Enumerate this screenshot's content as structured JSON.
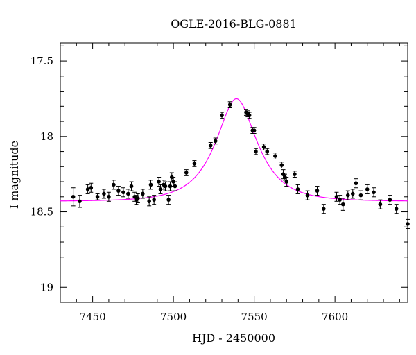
{
  "chart_data": {
    "type": "scatter",
    "title": "OGLE-2016-BLG-0881",
    "xlabel": "HJD - 2450000",
    "ylabel": "I magnitude",
    "xlim": [
      7430,
      7645
    ],
    "ylim": [
      19.1,
      17.38
    ],
    "y_axis_inverted": true,
    "grid": false,
    "xticks": [
      7450,
      7500,
      7550,
      7600
    ],
    "xtick_labels": [
      "7450",
      "7500",
      "7550",
      "7600"
    ],
    "yticks": [
      17.5,
      18,
      18.5,
      19
    ],
    "ytick_labels": [
      "17.5",
      "18",
      "18.5",
      "19"
    ],
    "colors": {
      "points": "#000000",
      "model": "#ff00ff",
      "axes": "#000000"
    },
    "series": [
      {
        "kind": "points-with-errorbars",
        "x": [
          7438,
          7442,
          7447,
          7449,
          7453,
          7457,
          7460,
          7463,
          7466,
          7469,
          7472,
          7474,
          7476,
          7477,
          7478,
          7481,
          7485,
          7486,
          7488,
          7491,
          7492,
          7494,
          7495,
          7497,
          7498,
          7499,
          7500,
          7501,
          7508,
          7513,
          7523,
          7526,
          7530,
          7535,
          7545,
          7546,
          7547,
          7549,
          7550,
          7551,
          7556,
          7558,
          7563,
          7567,
          7568,
          7569,
          7570,
          7575,
          7577,
          7583,
          7589,
          7593,
          7601,
          7603,
          7605,
          7608,
          7611,
          7613,
          7616,
          7620,
          7624,
          7628,
          7634,
          7638,
          7645
        ],
        "y": [
          18.4,
          18.43,
          18.35,
          18.34,
          18.4,
          18.38,
          18.4,
          18.32,
          18.36,
          18.37,
          18.38,
          18.33,
          18.4,
          18.42,
          18.41,
          18.38,
          18.43,
          18.32,
          18.42,
          18.3,
          18.35,
          18.32,
          18.33,
          18.42,
          18.33,
          18.27,
          18.3,
          18.33,
          18.24,
          18.18,
          18.06,
          18.03,
          17.86,
          17.79,
          17.84,
          17.85,
          17.86,
          17.96,
          17.96,
          18.1,
          18.07,
          18.1,
          18.13,
          18.19,
          18.25,
          18.27,
          18.3,
          18.25,
          18.35,
          18.39,
          18.36,
          18.48,
          18.4,
          18.42,
          18.45,
          18.39,
          18.38,
          18.31,
          18.39,
          18.35,
          18.37,
          18.45,
          18.42,
          18.48,
          18.58
        ],
        "err": [
          0.06,
          0.04,
          0.03,
          0.03,
          0.02,
          0.03,
          0.03,
          0.03,
          0.03,
          0.03,
          0.03,
          0.03,
          0.03,
          0.03,
          0.03,
          0.03,
          0.03,
          0.03,
          0.03,
          0.03,
          0.03,
          0.03,
          0.03,
          0.03,
          0.03,
          0.03,
          0.03,
          0.03,
          0.02,
          0.02,
          0.02,
          0.02,
          0.02,
          0.02,
          0.02,
          0.02,
          0.02,
          0.02,
          0.02,
          0.02,
          0.02,
          0.02,
          0.02,
          0.02,
          0.03,
          0.02,
          0.03,
          0.02,
          0.03,
          0.03,
          0.03,
          0.03,
          0.03,
          0.03,
          0.04,
          0.03,
          0.03,
          0.03,
          0.03,
          0.03,
          0.03,
          0.03,
          0.03,
          0.03,
          0.03
        ]
      },
      {
        "kind": "model-curve",
        "peak_x": 7539,
        "peak_y": 17.75,
        "baseline_y": 18.43
      }
    ]
  }
}
